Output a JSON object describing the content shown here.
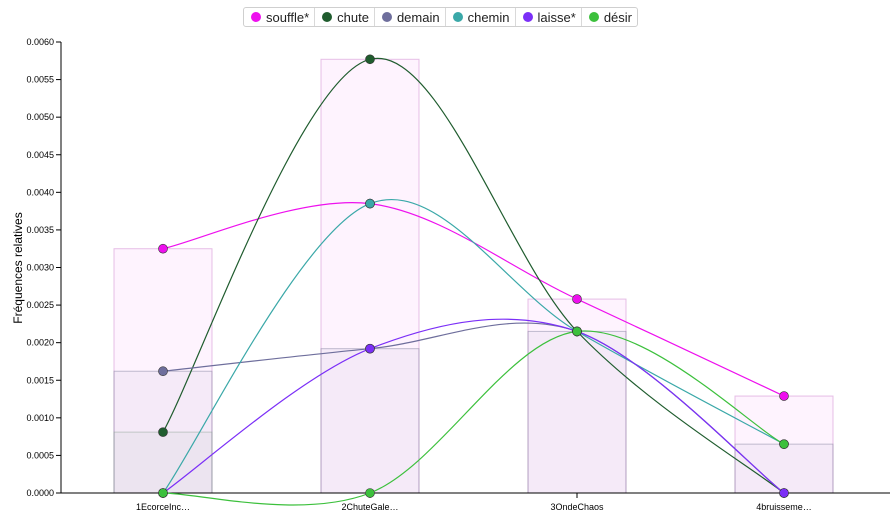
{
  "chart_data": {
    "type": "line",
    "title": "",
    "ylabel": "Fréquences relatives",
    "xlabel": "",
    "ylim": [
      0,
      0.006
    ],
    "yticks": [
      "0.0000",
      "0.0005",
      "0.0010",
      "0.0015",
      "0.0020",
      "0.0025",
      "0.0030",
      "0.0035",
      "0.0040",
      "0.0045",
      "0.0050",
      "0.0055",
      "0.0060"
    ],
    "categories": [
      "1EcorceInc…",
      "2ChuteGale…",
      "3OndeChaos",
      "4bruisseme…"
    ],
    "legend_position": "top-center",
    "series": [
      {
        "name": "souffle*",
        "color": "#ee10ee",
        "values": [
          0.00325,
          0.00385,
          0.00258,
          0.00129
        ]
      },
      {
        "name": "chute",
        "color": "#1f5c2e",
        "values": [
          0.00081,
          0.00577,
          0.00215,
          0.0
        ]
      },
      {
        "name": "demain",
        "color": "#6e6e9c",
        "values": [
          0.00162,
          0.00192,
          0.00215,
          0.0
        ]
      },
      {
        "name": "chemin",
        "color": "#3aa8a8",
        "values": [
          0.0,
          0.00385,
          0.00215,
          0.00065
        ]
      },
      {
        "name": "laisse*",
        "color": "#7b2ff7",
        "values": [
          0.0,
          0.00192,
          0.00215,
          0.0
        ]
      },
      {
        "name": "désir",
        "color": "#3cc03c",
        "values": [
          0.0,
          0.0,
          0.00215,
          0.00065
        ]
      }
    ],
    "bars": [
      {
        "category": "1EcorceInc…",
        "values": [
          0.00325,
          0.00162,
          0.00081
        ]
      },
      {
        "category": "2ChuteGale…",
        "values": [
          0.00577,
          0.00192
        ]
      },
      {
        "category": "3OndeChaos",
        "values": [
          0.00258,
          0.00215
        ]
      },
      {
        "category": "4bruisseme…",
        "values": [
          0.00129,
          0.00065
        ]
      }
    ]
  }
}
